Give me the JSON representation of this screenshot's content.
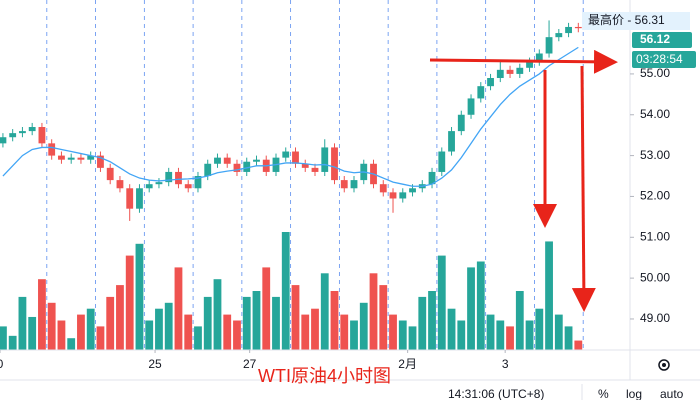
{
  "chart_data": {
    "type": "candlestick",
    "annotation": "WTI原油4小时图",
    "open": [
      53.3,
      53.45,
      53.55,
      53.6,
      53.7,
      53.3,
      53.0,
      52.9,
      52.95,
      52.9,
      53.0,
      52.7,
      52.4,
      52.2,
      51.7,
      52.2,
      52.3,
      52.35,
      52.6,
      52.3,
      52.2,
      52.5,
      52.8,
      52.95,
      52.8,
      52.6,
      52.85,
      52.9,
      52.6,
      52.95,
      53.1,
      52.8,
      52.7,
      52.6,
      53.2,
      52.4,
      52.2,
      52.4,
      52.8,
      52.3,
      52.1,
      51.95,
      52.1,
      52.2,
      52.3,
      52.6,
      53.1,
      53.6,
      54.0,
      54.4,
      54.7,
      54.9,
      55.1,
      55.0,
      55.15,
      55.3,
      55.5,
      55.9,
      56.0,
      56.15
    ],
    "high": [
      53.55,
      53.65,
      53.7,
      53.8,
      53.8,
      53.4,
      53.1,
      53.05,
      53.05,
      53.1,
      53.1,
      52.8,
      52.5,
      52.3,
      52.3,
      52.4,
      52.45,
      52.7,
      52.7,
      52.4,
      52.6,
      52.9,
      53.05,
      53.05,
      52.9,
      52.95,
      53.0,
      53.0,
      53.05,
      53.2,
      53.2,
      52.9,
      52.8,
      53.4,
      53.3,
      52.5,
      52.5,
      52.9,
      52.9,
      52.4,
      52.2,
      52.2,
      52.3,
      52.4,
      52.7,
      53.2,
      53.7,
      54.1,
      54.5,
      54.8,
      55.0,
      55.3,
      55.2,
      55.25,
      55.4,
      55.6,
      56.31,
      56.1,
      56.25,
      56.25
    ],
    "low": [
      53.2,
      53.35,
      53.45,
      53.5,
      53.2,
      52.9,
      52.8,
      52.8,
      52.8,
      52.8,
      52.6,
      52.3,
      52.1,
      51.4,
      51.6,
      52.1,
      52.2,
      52.25,
      52.2,
      52.1,
      52.1,
      52.4,
      52.7,
      52.7,
      52.5,
      52.5,
      52.75,
      52.5,
      52.5,
      52.85,
      52.7,
      52.6,
      52.5,
      52.5,
      52.3,
      52.1,
      52.1,
      52.3,
      52.2,
      52.0,
      51.6,
      51.85,
      52.0,
      52.1,
      52.2,
      52.5,
      53.0,
      53.5,
      53.9,
      54.3,
      54.6,
      54.8,
      54.9,
      54.9,
      55.05,
      55.2,
      55.4,
      55.8,
      55.9,
      56.02
    ],
    "close": [
      53.45,
      53.55,
      53.6,
      53.7,
      53.3,
      53.0,
      52.9,
      52.95,
      52.9,
      53.0,
      52.7,
      52.4,
      52.2,
      51.7,
      52.2,
      52.3,
      52.35,
      52.6,
      52.3,
      52.2,
      52.5,
      52.8,
      52.95,
      52.8,
      52.6,
      52.85,
      52.9,
      52.6,
      52.95,
      53.1,
      52.8,
      52.7,
      52.6,
      53.2,
      52.4,
      52.2,
      52.4,
      52.8,
      52.3,
      52.1,
      51.95,
      52.1,
      52.2,
      52.3,
      52.6,
      53.1,
      53.6,
      54.0,
      54.4,
      54.7,
      54.9,
      55.1,
      55.0,
      55.15,
      55.3,
      55.5,
      55.9,
      56.0,
      56.15,
      56.12
    ],
    "colors": {
      "up": "#26a69a",
      "down": "#ef5350"
    },
    "ma": {
      "color": "#42a5f5",
      "values": [
        52.5,
        52.75,
        53.0,
        53.15,
        53.2,
        53.2,
        53.15,
        53.1,
        53.05,
        53.0,
        52.95,
        52.85,
        52.7,
        52.55,
        52.45,
        52.4,
        52.38,
        52.4,
        52.42,
        52.43,
        52.45,
        52.5,
        52.58,
        52.62,
        52.65,
        52.7,
        52.75,
        52.75,
        52.78,
        52.82,
        52.82,
        52.8,
        52.77,
        52.78,
        52.72,
        52.62,
        52.58,
        52.6,
        52.55,
        52.45,
        52.35,
        52.3,
        52.25,
        52.25,
        52.3,
        52.45,
        52.65,
        52.95,
        53.3,
        53.65,
        53.95,
        54.25,
        54.5,
        54.7,
        54.85,
        55.0,
        55.2,
        55.35,
        55.5,
        55.65
      ]
    },
    "volume": [
      20,
      12,
      45,
      28,
      60,
      40,
      25,
      10,
      30,
      35,
      20,
      45,
      55,
      80,
      90,
      25,
      35,
      40,
      70,
      30,
      20,
      45,
      60,
      30,
      25,
      45,
      50,
      70,
      45,
      100,
      55,
      30,
      35,
      65,
      50,
      30,
      25,
      40,
      65,
      55,
      30,
      25,
      20,
      45,
      50,
      80,
      35,
      25,
      70,
      75,
      30,
      25,
      20,
      50,
      25,
      35,
      92,
      30,
      20,
      8
    ],
    "ylim": [
      48.24,
      56.81
    ],
    "yticks": [
      {
        "value": 49,
        "label": "49.00"
      },
      {
        "value": 50,
        "label": "50.00"
      },
      {
        "value": 51,
        "label": "51.00"
      },
      {
        "value": 52,
        "label": "52.00"
      },
      {
        "value": 53,
        "label": "53.00"
      },
      {
        "value": 54,
        "label": "54.00"
      },
      {
        "value": 55,
        "label": "55.00"
      }
    ],
    "xlim": [
      -0.3,
      64.3
    ],
    "xticks": [
      {
        "value": -0.3,
        "label": "0"
      },
      {
        "value": 15.6,
        "label": "25"
      },
      {
        "value": 25.3,
        "label": "27"
      },
      {
        "value": 41.5,
        "label": "2月"
      },
      {
        "value": 51.5,
        "label": "3"
      }
    ],
    "high_label": "最高价 - 56.31",
    "last_price": 56.12,
    "countdown": "03:28:54",
    "toolbar": {
      "time": "14:31:06 (UTC+8)",
      "percent": "%",
      "log": "log",
      "auto": "auto"
    }
  }
}
